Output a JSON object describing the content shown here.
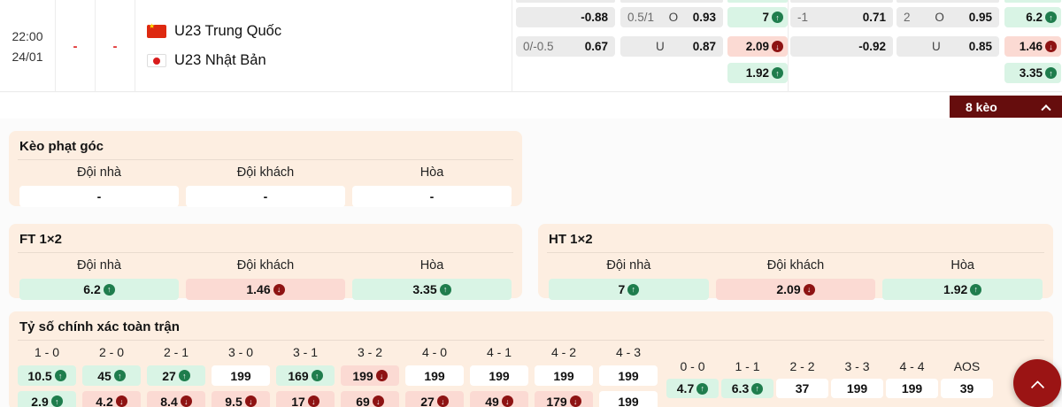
{
  "match": {
    "time": "22:00",
    "date": "24/01",
    "score_home": "-",
    "score_away": "-",
    "home": {
      "name": "U23 Trung Quốc",
      "flag": "china-flag"
    },
    "away": {
      "name": "U23 Nhật Bản",
      "flag": "japan-flag"
    },
    "odds_groups": [
      {
        "handicap": [
          {
            "hdp": "",
            "odds": "-0.88"
          },
          {
            "hdp": "0/-0.5",
            "odds": "0.67"
          }
        ],
        "over_under": [
          {
            "hdp": "0.5/1",
            "side": "O",
            "odds": "0.93"
          },
          {
            "hdp": "",
            "side": "U",
            "odds": "0.87"
          }
        ],
        "one_x_two": [
          {
            "value": "7",
            "trend": "up"
          },
          {
            "value": "2.09",
            "trend": "down"
          },
          {
            "value": "1.92",
            "trend": "up"
          }
        ]
      },
      {
        "handicap": [
          {
            "hdp": "-1",
            "odds": "0.71"
          },
          {
            "hdp": "",
            "odds": "-0.92"
          }
        ],
        "over_under": [
          {
            "hdp": "2",
            "side": "O",
            "odds": "0.95"
          },
          {
            "hdp": "",
            "side": "U",
            "odds": "0.85"
          }
        ],
        "one_x_two": [
          {
            "value": "6.2",
            "trend": "up"
          },
          {
            "value": "1.46",
            "trend": "down"
          },
          {
            "value": "3.35",
            "trend": "up"
          }
        ]
      }
    ],
    "markets_toggle_label": "8 kèo"
  },
  "sections": {
    "corners": {
      "title": "Kèo phạt góc",
      "headers": [
        "Đội nhà",
        "Đội khách",
        "Hòa"
      ],
      "values": [
        {
          "value": "-",
          "tone": "white"
        },
        {
          "value": "-",
          "tone": "white"
        },
        {
          "value": "-",
          "tone": "white"
        }
      ]
    },
    "ft_1x2": {
      "title": "FT 1×2",
      "headers": [
        "Đội nhà",
        "Đội khách",
        "Hòa"
      ],
      "values": [
        {
          "value": "6.2",
          "trend": "up",
          "tone": "green"
        },
        {
          "value": "1.46",
          "trend": "down",
          "tone": "red"
        },
        {
          "value": "3.35",
          "trend": "up",
          "tone": "green"
        }
      ]
    },
    "ht_1x2": {
      "title": "HT 1×2",
      "headers": [
        "Đội nhà",
        "Đội khách",
        "Hòa"
      ],
      "values": [
        {
          "value": "7",
          "trend": "up",
          "tone": "green"
        },
        {
          "value": "2.09",
          "trend": "down",
          "tone": "red"
        },
        {
          "value": "1.92",
          "trend": "up",
          "tone": "green"
        }
      ]
    },
    "correct_score": {
      "title": "Tỷ số chính xác toàn trận",
      "score_columns": [
        {
          "label": "1 - 0",
          "top": {
            "value": "10.5",
            "trend": "up",
            "tone": "green"
          },
          "bottom": {
            "value": "2.9",
            "trend": "up",
            "tone": "green"
          }
        },
        {
          "label": "2 - 0",
          "top": {
            "value": "45",
            "trend": "up",
            "tone": "green"
          },
          "bottom": {
            "value": "4.2",
            "trend": "down",
            "tone": "red"
          }
        },
        {
          "label": "2 - 1",
          "top": {
            "value": "27",
            "trend": "up",
            "tone": "green"
          },
          "bottom": {
            "value": "8.4",
            "trend": "down",
            "tone": "red"
          }
        },
        {
          "label": "3 - 0",
          "top": {
            "value": "199",
            "tone": "white"
          },
          "bottom": {
            "value": "9.5",
            "trend": "down",
            "tone": "red"
          }
        },
        {
          "label": "3 - 1",
          "top": {
            "value": "169",
            "trend": "up",
            "tone": "green"
          },
          "bottom": {
            "value": "17",
            "trend": "down",
            "tone": "red"
          }
        },
        {
          "label": "3 - 2",
          "top": {
            "value": "199",
            "trend": "down",
            "tone": "red"
          },
          "bottom": {
            "value": "69",
            "trend": "down",
            "tone": "red"
          }
        },
        {
          "label": "4 - 0",
          "top": {
            "value": "199",
            "tone": "white"
          },
          "bottom": {
            "value": "27",
            "trend": "down",
            "tone": "red"
          }
        },
        {
          "label": "4 - 1",
          "top": {
            "value": "199",
            "tone": "white"
          },
          "bottom": {
            "value": "49",
            "trend": "down",
            "tone": "red"
          }
        },
        {
          "label": "4 - 2",
          "top": {
            "value": "199",
            "tone": "white"
          },
          "bottom": {
            "value": "179",
            "trend": "down",
            "tone": "red"
          }
        },
        {
          "label": "4 - 3",
          "top": {
            "value": "199",
            "tone": "white"
          },
          "bottom": {
            "value": "199",
            "tone": "white"
          }
        }
      ],
      "draw_columns": [
        {
          "label": "0 - 0",
          "value": "4.7",
          "trend": "up",
          "tone": "green"
        },
        {
          "label": "1 - 1",
          "value": "6.3",
          "trend": "up",
          "tone": "green"
        },
        {
          "label": "2 - 2",
          "value": "37",
          "tone": "white"
        },
        {
          "label": "3 - 3",
          "value": "199",
          "tone": "white"
        },
        {
          "label": "4 - 4",
          "value": "199",
          "tone": "white"
        },
        {
          "label": "AOS",
          "value": "39",
          "tone": "white"
        }
      ]
    }
  },
  "colors": {
    "up_badge": "#1f7d4d",
    "down_badge": "#8e1313",
    "green_cell": "#d9f4e5",
    "red_cell": "#fbdad3",
    "gray_cell": "#ebebeb",
    "section_bg": "#fdeee1",
    "markets_bar": "#660d0d",
    "scroll_button": "#9b1414"
  }
}
